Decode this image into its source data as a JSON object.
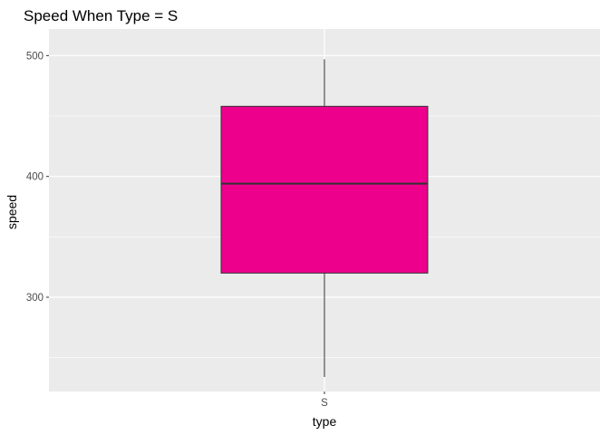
{
  "chart_data": {
    "type": "boxplot",
    "title": "Speed When Type = S",
    "xlabel": "type",
    "ylabel": "speed",
    "categories": [
      "S"
    ],
    "boxes": [
      {
        "category": "S",
        "whisker_low": 234,
        "q1": 320,
        "median": 394,
        "q3": 458,
        "whisker_high": 497
      }
    ],
    "ylim": [
      222,
      522
    ],
    "yticks": [
      300,
      400,
      500
    ],
    "y_minor_ticks": [
      250,
      350,
      450
    ],
    "grid": true,
    "legend": false,
    "colors": {
      "box_fill": "#EC008C",
      "box_outline": "#333333",
      "panel_background": "#EBEBEB",
      "grid_major": "#FFFFFF",
      "tick_text": "#4D4D4D"
    }
  }
}
